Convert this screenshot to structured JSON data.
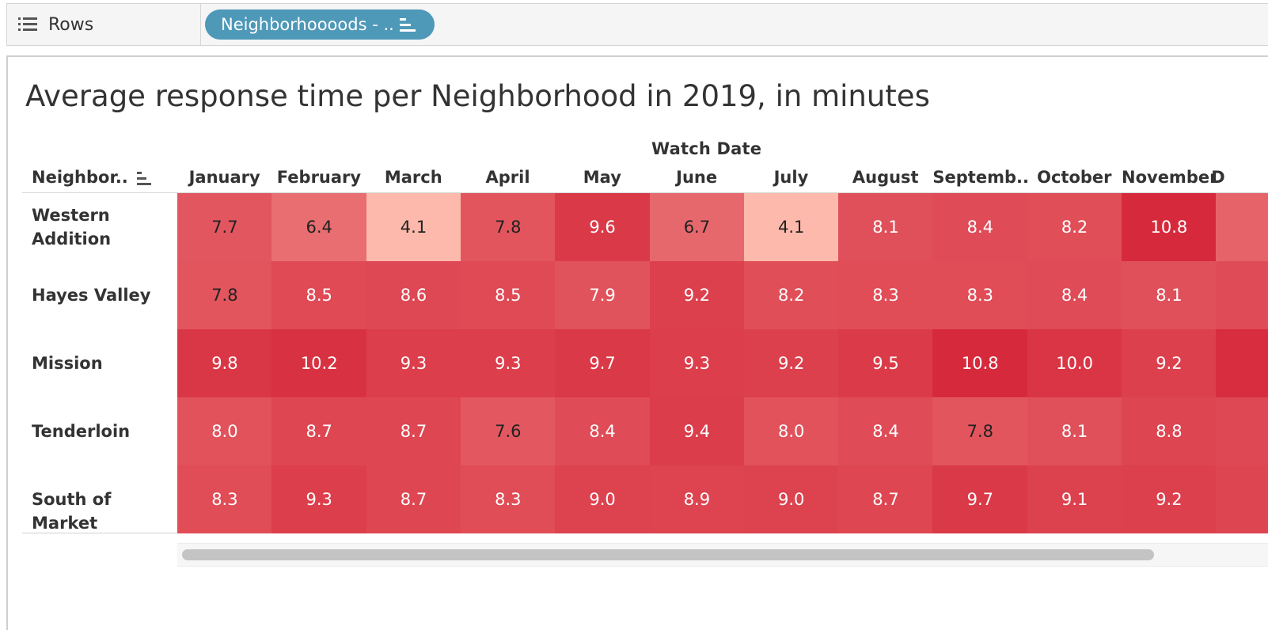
{
  "shelf": {
    "rows_label": "Rows",
    "pill_label": "Neighborhoooods - .."
  },
  "view": {
    "title": "Average response time per Neighborhood in 2019, in minutes",
    "column_group_label": "Watch Date",
    "row_header": "Neighbor..",
    "months": [
      "January",
      "February",
      "March",
      "April",
      "May",
      "June",
      "July",
      "August",
      "Septemb..",
      "October",
      "November",
      "D"
    ],
    "rows": [
      {
        "name": "Western\nAddition",
        "values": [
          "7.7",
          "6.4",
          "4.1",
          "7.8",
          "9.6",
          "6.7",
          "4.1",
          "8.1",
          "8.4",
          "8.2",
          "10.8"
        ]
      },
      {
        "name": "Hayes Valley",
        "values": [
          "7.8",
          "8.5",
          "8.6",
          "8.5",
          "7.9",
          "9.2",
          "8.2",
          "8.3",
          "8.3",
          "8.4",
          "8.1"
        ]
      },
      {
        "name": "Mission",
        "values": [
          "9.8",
          "10.2",
          "9.3",
          "9.3",
          "9.7",
          "9.3",
          "9.2",
          "9.5",
          "10.8",
          "10.0",
          "9.2"
        ]
      },
      {
        "name": "Tenderloin",
        "values": [
          "8.0",
          "8.7",
          "8.7",
          "7.6",
          "8.4",
          "9.4",
          "8.0",
          "8.4",
          "7.8",
          "8.1",
          "8.8"
        ]
      },
      {
        "name": "South of Market",
        "values": [
          "8.3",
          "9.3",
          "8.7",
          "8.3",
          "9.0",
          "8.9",
          "9.0",
          "8.7",
          "9.7",
          "9.1",
          "9.2"
        ]
      }
    ]
  },
  "colors": {
    "pill": "#4e98b8",
    "low": "#fdb9ab",
    "high": "#d62a3c"
  },
  "icons": [
    "rows-list-icon",
    "sort-descending-icon"
  ]
}
